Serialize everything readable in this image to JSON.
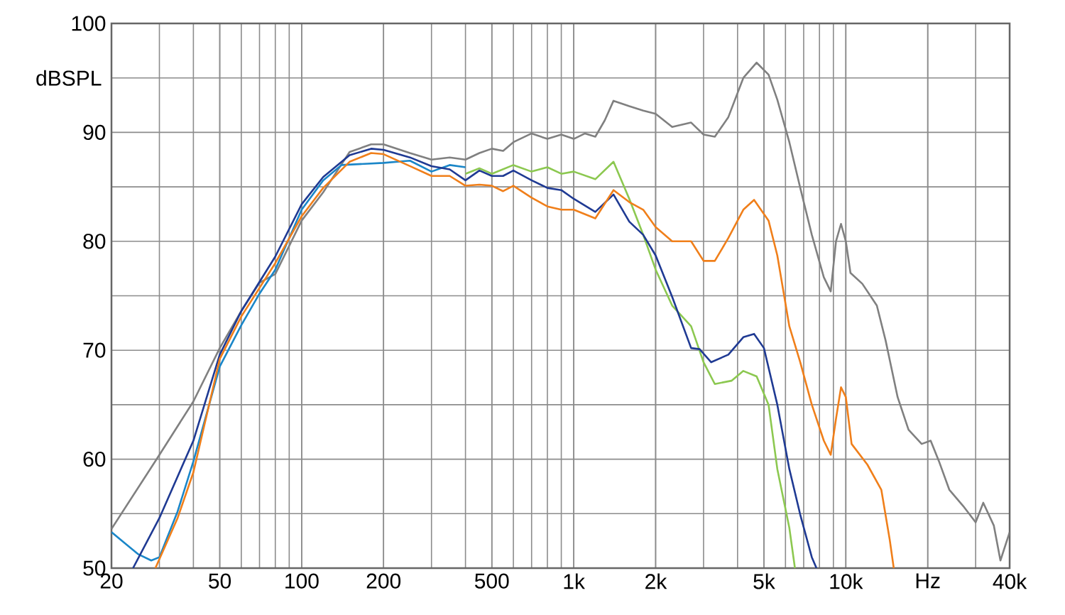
{
  "chart_data": {
    "type": "line",
    "ylabel": "dBSPL",
    "log": "x",
    "grid": true,
    "line_style": "solid",
    "marker": "none",
    "xlim": [
      20,
      40000
    ],
    "ylim": [
      50,
      100
    ],
    "xticks": [
      20,
      50,
      100,
      200,
      500,
      {
        "value": 1000,
        "label": "1k"
      },
      {
        "value": 2000,
        "label": "2k"
      },
      {
        "value": 5000,
        "label": "5k"
      },
      {
        "value": 10000,
        "label": "10k"
      },
      {
        "value": 20000,
        "label": "Hz"
      },
      {
        "value": 40000,
        "label": "40k"
      }
    ],
    "yticks": [
      50,
      60,
      70,
      80,
      90,
      100
    ],
    "series": [
      {
        "color": "#808080",
        "x": [
          20,
          30,
          40,
          50,
          60,
          70,
          80,
          100,
          120,
          150,
          180,
          200,
          250,
          300,
          350,
          400,
          450,
          500,
          550,
          600,
          700,
          800,
          900,
          1000,
          1100,
          1200,
          1300,
          1400,
          1600,
          1800,
          2000,
          2300,
          2700,
          3000,
          3300,
          3700,
          4200,
          4700,
          5200,
          5600,
          6200,
          6800,
          7500,
          8300,
          8800,
          9200,
          9600,
          10000,
          10400,
          11500,
          13000,
          14000,
          15500,
          17000,
          19000,
          20500,
          22000,
          24000,
          27000,
          30000,
          32000,
          35000,
          37000,
          40000
        ],
        "values": [
          53.6,
          60.4,
          65.3,
          70.2,
          73.6,
          76.2,
          77.0,
          81.9,
          84.5,
          88.2,
          88.9,
          88.9,
          88.1,
          87.5,
          87.7,
          87.5,
          88.1,
          88.5,
          88.3,
          89.1,
          89.9,
          89.4,
          89.8,
          89.4,
          89.9,
          89.6,
          91.1,
          92.9,
          92.4,
          92.0,
          91.7,
          90.5,
          90.9,
          89.8,
          89.6,
          91.4,
          95.0,
          96.4,
          95.3,
          93.0,
          89.1,
          84.9,
          80.6,
          76.7,
          75.4,
          80.0,
          81.6,
          80.0,
          77.1,
          76.1,
          74.1,
          70.9,
          65.7,
          62.7,
          61.4,
          61.7,
          59.8,
          57.2,
          55.7,
          54.2,
          56.0,
          53.9,
          50.7,
          53.3
        ]
      },
      {
        "color": "#1a86c8",
        "x": [
          20,
          25,
          28,
          30,
          35,
          40,
          50,
          60,
          70,
          80,
          100,
          120,
          140,
          200,
          250,
          300,
          350,
          400
        ],
        "values": [
          53.3,
          51.3,
          50.7,
          51.0,
          55.2,
          59.8,
          68.5,
          72.3,
          75.2,
          77.4,
          82.9,
          85.6,
          87.0,
          87.2,
          87.4,
          86.4,
          87.0,
          86.8
        ]
      },
      {
        "color": "#8cc850",
        "x": [
          400,
          450,
          500,
          600,
          700,
          800,
          900,
          1000,
          1200,
          1400,
          1600,
          1800,
          2000,
          2300,
          2700,
          3000,
          3300,
          3800,
          4200,
          4700,
          5200,
          5600,
          6200,
          6500
        ],
        "values": [
          86.2,
          86.7,
          86.2,
          87.0,
          86.4,
          86.8,
          86.2,
          86.4,
          85.7,
          87.3,
          83.9,
          80.6,
          77.4,
          74.1,
          72.2,
          68.9,
          66.9,
          67.2,
          68.1,
          67.6,
          65.0,
          59.1,
          53.7,
          50
        ]
      },
      {
        "color": "#1f3a93",
        "x": [
          24,
          30,
          40,
          50,
          60,
          80,
          100,
          120,
          150,
          180,
          200,
          250,
          300,
          350,
          400,
          450,
          500,
          550,
          600,
          700,
          800,
          900,
          1000,
          1200,
          1400,
          1600,
          1800,
          2000,
          2300,
          2700,
          2900,
          3200,
          3700,
          4200,
          4600,
          5000,
          5600,
          6200,
          6800,
          7500,
          7800
        ],
        "values": [
          50,
          54.6,
          61.7,
          69.6,
          73.6,
          78.6,
          83.4,
          85.9,
          87.9,
          88.5,
          88.4,
          87.7,
          86.9,
          86.6,
          85.6,
          86.5,
          86.0,
          86.0,
          86.5,
          85.6,
          84.9,
          84.7,
          83.9,
          82.7,
          84.3,
          81.8,
          80.6,
          78.7,
          74.9,
          70.2,
          70.1,
          68.9,
          69.6,
          71.2,
          71.5,
          70.2,
          65.0,
          59.1,
          54.9,
          51.0,
          50
        ]
      },
      {
        "color": "#f07f1a",
        "x": [
          29,
          35,
          40,
          50,
          60,
          80,
          100,
          120,
          150,
          180,
          200,
          250,
          300,
          350,
          400,
          450,
          500,
          550,
          600,
          700,
          800,
          900,
          1000,
          1200,
          1400,
          1600,
          1800,
          2000,
          2300,
          2700,
          3000,
          3300,
          3700,
          4200,
          4600,
          5200,
          5600,
          6200,
          6800,
          7500,
          8300,
          8800,
          9200,
          9600,
          10000,
          10500,
          12000,
          13500,
          14500,
          15000
        ],
        "values": [
          50,
          54.6,
          58.8,
          69.2,
          73.1,
          78.0,
          82.3,
          84.9,
          87.3,
          88.1,
          88.0,
          86.9,
          86.0,
          86.0,
          85.1,
          85.2,
          85.1,
          84.6,
          85.1,
          84.0,
          83.2,
          82.9,
          82.9,
          82.1,
          84.7,
          83.6,
          82.9,
          81.3,
          80.0,
          80.0,
          78.2,
          78.2,
          80.3,
          82.9,
          83.8,
          81.9,
          78.7,
          72.2,
          68.9,
          65.0,
          61.7,
          60.4,
          63.7,
          66.6,
          65.7,
          61.4,
          59.5,
          57.2,
          52.6,
          50
        ]
      }
    ]
  }
}
